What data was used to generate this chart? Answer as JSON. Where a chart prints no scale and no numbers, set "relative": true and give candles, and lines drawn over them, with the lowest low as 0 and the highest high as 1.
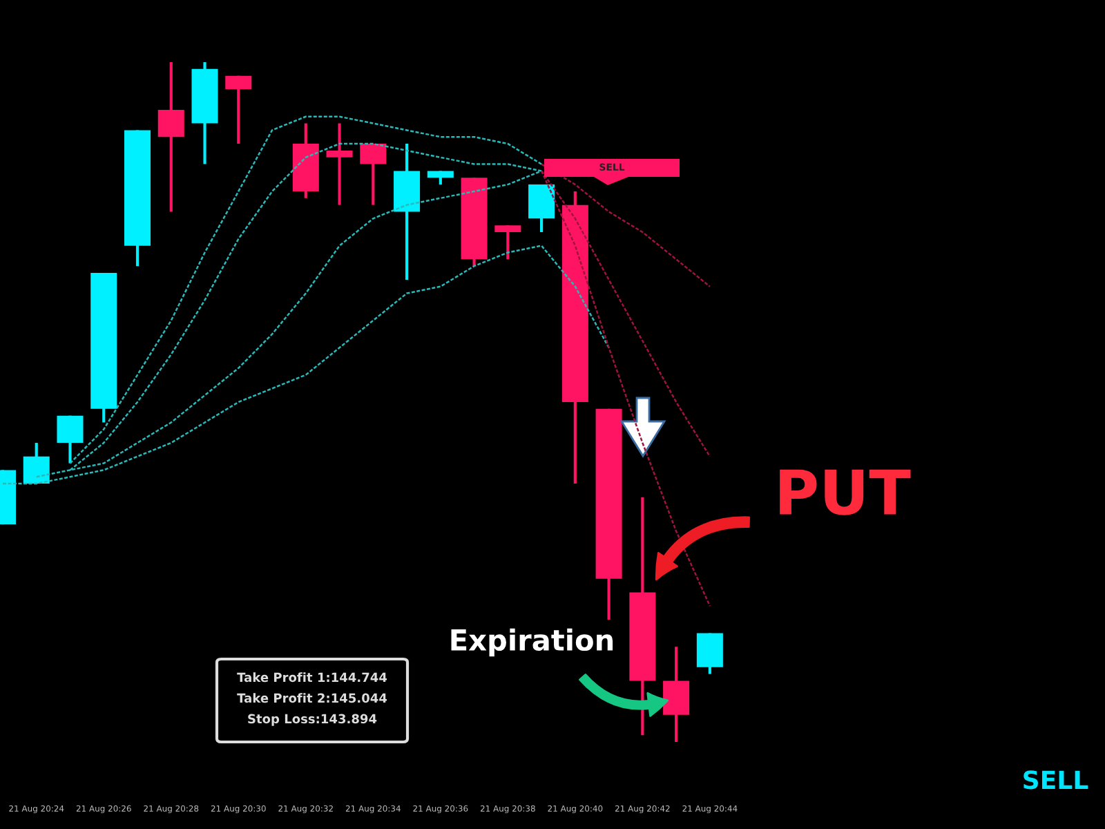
{
  "chart_data": {
    "type": "candlestick",
    "relative": true,
    "tick_labels": "x",
    "line_style": "dashed",
    "categories": [
      null,
      "21 Aug 20:24",
      null,
      "21 Aug 20:26",
      null,
      "21 Aug 20:28",
      null,
      "21 Aug 20:30",
      null,
      "21 Aug 20:32",
      null,
      "21 Aug 20:34",
      null,
      "21 Aug 20:36",
      null,
      "21 Aug 20:38",
      null,
      "21 Aug 20:40",
      null,
      "21 Aug 20:42",
      null,
      "21 Aug 20:44"
    ],
    "ohlc": [
      [
        0.32,
        0.4,
        0.32,
        0.4
      ],
      [
        0.38,
        0.44,
        0.38,
        0.42
      ],
      [
        0.44,
        0.48,
        0.41,
        0.48
      ],
      [
        0.49,
        0.69,
        0.47,
        0.69
      ],
      [
        0.73,
        0.9,
        0.7,
        0.9
      ],
      [
        0.93,
        1.0,
        0.78,
        0.89
      ],
      [
        0.91,
        1.0,
        0.85,
        0.99
      ],
      [
        0.98,
        0.98,
        0.88,
        0.96
      ],
      null,
      [
        0.88,
        0.91,
        0.8,
        0.81
      ],
      [
        0.87,
        0.91,
        0.79,
        0.86
      ],
      [
        0.88,
        0.88,
        0.79,
        0.85
      ],
      [
        0.78,
        0.88,
        0.68,
        0.84
      ],
      [
        0.83,
        0.84,
        0.82,
        0.84
      ],
      [
        0.83,
        0.83,
        0.7,
        0.71
      ],
      [
        0.76,
        0.76,
        0.71,
        0.75
      ],
      [
        0.77,
        0.82,
        0.75,
        0.82
      ],
      [
        0.79,
        0.81,
        0.38,
        0.5
      ],
      [
        0.49,
        0.49,
        0.18,
        0.24
      ],
      [
        0.22,
        0.36,
        0.01,
        0.09
      ],
      [
        0.09,
        0.14,
        0.0,
        0.04
      ],
      [
        0.11,
        0.16,
        0.1,
        0.16
      ]
    ],
    "colors": [
      "#00f0ff",
      "#00f0ff",
      "#00f0ff",
      "#00f0ff",
      "#00f0ff",
      "#ff1464",
      "#00f0ff",
      "#ff1464",
      null,
      "#ff1464",
      "#ff1464",
      "#ff1464",
      "#00f0ff",
      "#00f0ff",
      "#ff1464",
      "#ff1464",
      "#00f0ff",
      "#ff1464",
      "#ff1464",
      "#ff1464",
      "#ff1464",
      "#00f0ff"
    ],
    "series": [
      {
        "type": "line",
        "color": "#2ab8b8",
        "values": [
          null,
          null,
          0.41,
          0.46,
          0.54,
          0.62,
          0.72,
          0.81,
          0.9,
          0.92,
          0.92,
          0.91,
          0.9,
          0.89,
          0.89,
          0.88,
          0.85,
          null,
          null,
          null,
          null,
          null
        ]
      },
      {
        "type": "line",
        "color": "#2ab8b8",
        "values": [
          null,
          null,
          0.4,
          0.44,
          0.5,
          0.57,
          0.65,
          0.74,
          0.81,
          0.86,
          0.88,
          0.88,
          0.87,
          0.86,
          0.85,
          0.85,
          0.84,
          null,
          null,
          null,
          null,
          null
        ]
      },
      {
        "type": "line",
        "color": "#2ab8b8",
        "values": [
          null,
          0.39,
          0.4,
          0.41,
          0.44,
          0.47,
          0.51,
          0.55,
          0.6,
          0.66,
          0.73,
          0.77,
          0.79,
          0.8,
          0.81,
          0.82,
          0.84,
          null,
          null,
          null,
          null,
          null
        ]
      },
      {
        "type": "line",
        "color": "#2ab8b8",
        "values": [
          0.38,
          0.38,
          0.39,
          0.4,
          0.42,
          0.44,
          0.47,
          0.5,
          0.52,
          0.54,
          0.58,
          0.62,
          0.66,
          0.67,
          0.7,
          0.72,
          0.73,
          0.67,
          0.58,
          null,
          null,
          null
        ]
      },
      {
        "type": "line",
        "color": "#a0143c",
        "values": [
          null,
          null,
          null,
          null,
          null,
          null,
          null,
          null,
          null,
          null,
          null,
          null,
          null,
          null,
          null,
          null,
          0.85,
          0.82,
          0.78,
          0.75,
          0.71,
          0.67
        ]
      },
      {
        "type": "line",
        "color": "#a0143c",
        "values": [
          null,
          null,
          null,
          null,
          null,
          null,
          null,
          null,
          null,
          null,
          null,
          null,
          null,
          null,
          null,
          null,
          0.84,
          0.77,
          0.68,
          0.59,
          0.5,
          0.42
        ]
      },
      {
        "type": "line",
        "color": "#a0143c",
        "values": [
          null,
          null,
          null,
          null,
          null,
          null,
          null,
          null,
          null,
          null,
          null,
          null,
          null,
          null,
          null,
          null,
          0.84,
          0.73,
          0.58,
          0.44,
          0.31,
          0.2
        ]
      }
    ],
    "annotations": [
      "SELL",
      "PUT",
      "Expiration",
      "Take Profit 1:144.744",
      "Take Profit 2:145.044",
      "Stop Loss:143.894",
      "SELL"
    ]
  }
}
